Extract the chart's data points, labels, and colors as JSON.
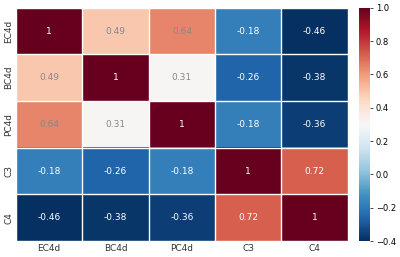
{
  "labels": [
    "EC4d",
    "BC4d",
    "PC4d",
    "C3",
    "C4"
  ],
  "matrix": [
    [
      1.0,
      0.49,
      0.64,
      -0.18,
      -0.46
    ],
    [
      0.49,
      1.0,
      0.31,
      -0.26,
      -0.38
    ],
    [
      0.64,
      0.31,
      1.0,
      -0.18,
      -0.36
    ],
    [
      -0.18,
      -0.26,
      -0.18,
      1.0,
      0.72
    ],
    [
      -0.46,
      -0.38,
      -0.36,
      0.72,
      1.0
    ]
  ],
  "vmin": -0.4,
  "vmax": 1.0,
  "cmap": "RdBu_r",
  "colorbar_ticks": [
    1.0,
    0.8,
    0.6,
    0.4,
    0.2,
    0.0,
    -0.2,
    -0.4
  ],
  "figsize": [
    4.0,
    2.57
  ],
  "dpi": 100,
  "annot_fontsize": 6.5,
  "tick_fontsize": 6.5,
  "cbar_fontsize": 6.0
}
